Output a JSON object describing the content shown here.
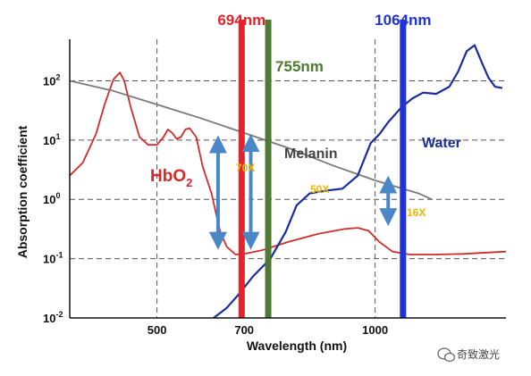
{
  "chart_data": {
    "type": "line",
    "title": "",
    "xlabel": "Wavelength (nm)",
    "ylabel": "Absorption coefficient",
    "xlim": [
      300,
      1300
    ],
    "ylim_log10": [
      -2,
      2.7
    ],
    "y_scale": "log",
    "grid": "dashed",
    "x_ticks": [
      {
        "value": 500,
        "label": "500"
      },
      {
        "value": 700,
        "label": "700"
      },
      {
        "value": 1000,
        "label": "1000"
      }
    ],
    "y_ticks": [
      {
        "value": 2,
        "base": "10",
        "exp": "2"
      },
      {
        "value": 1,
        "base": "10",
        "exp": "1"
      },
      {
        "value": 0,
        "base": "10",
        "exp": "0"
      },
      {
        "value": -1,
        "base": "10",
        "exp": "-1"
      },
      {
        "value": -2,
        "base": "10",
        "exp": "-2"
      }
    ],
    "series": [
      {
        "name": "HbO2",
        "label_main": "HbO",
        "label_sub": "2",
        "color": "#d42a2a",
        "points": [
          [
            300,
            0.4
          ],
          [
            330,
            0.62
          ],
          [
            360,
            1.1
          ],
          [
            380,
            1.6
          ],
          [
            400,
            2.02
          ],
          [
            415,
            2.14
          ],
          [
            425,
            2.0
          ],
          [
            440,
            1.55
          ],
          [
            460,
            1.05
          ],
          [
            480,
            0.92
          ],
          [
            500,
            0.92
          ],
          [
            515,
            1.05
          ],
          [
            525,
            1.18
          ],
          [
            535,
            1.12
          ],
          [
            545,
            1.02
          ],
          [
            555,
            1.05
          ],
          [
            565,
            1.18
          ],
          [
            575,
            1.2
          ],
          [
            590,
            1.05
          ],
          [
            605,
            0.55
          ],
          [
            625,
            0.1
          ],
          [
            645,
            -0.55
          ],
          [
            660,
            -0.8
          ],
          [
            680,
            -0.93
          ],
          [
            700,
            -0.92
          ],
          [
            740,
            -0.86
          ],
          [
            800,
            -0.72
          ],
          [
            870,
            -0.58
          ],
          [
            930,
            -0.5
          ],
          [
            960,
            -0.48
          ],
          [
            985,
            -0.53
          ],
          [
            1010,
            -0.72
          ],
          [
            1040,
            -0.88
          ],
          [
            1080,
            -0.93
          ],
          [
            1140,
            -0.93
          ],
          [
            1200,
            -0.92
          ],
          [
            1300,
            -0.88
          ]
        ]
      },
      {
        "name": "Melanin",
        "color": "#7a7a7a",
        "points": [
          [
            300,
            2.0
          ],
          [
            400,
            1.83
          ],
          [
            500,
            1.6
          ],
          [
            600,
            1.37
          ],
          [
            700,
            1.12
          ],
          [
            800,
            0.87
          ],
          [
            900,
            0.58
          ],
          [
            1000,
            0.32
          ],
          [
            1100,
            0.1
          ],
          [
            1130,
            0.0
          ]
        ]
      },
      {
        "name": "Water",
        "color": "#1a2d9c",
        "points": [
          [
            630,
            -2.0
          ],
          [
            660,
            -1.83
          ],
          [
            690,
            -1.58
          ],
          [
            720,
            -1.3
          ],
          [
            760,
            -1.0
          ],
          [
            795,
            -0.55
          ],
          [
            820,
            -0.1
          ],
          [
            850,
            0.1
          ],
          [
            890,
            0.15
          ],
          [
            925,
            0.18
          ],
          [
            960,
            0.4
          ],
          [
            990,
            0.95
          ],
          [
            1010,
            1.1
          ],
          [
            1030,
            1.3
          ],
          [
            1060,
            1.55
          ],
          [
            1085,
            1.7
          ],
          [
            1110,
            1.8
          ],
          [
            1140,
            1.78
          ],
          [
            1170,
            1.9
          ],
          [
            1190,
            2.15
          ],
          [
            1210,
            2.5
          ],
          [
            1228,
            2.6
          ],
          [
            1245,
            2.3
          ],
          [
            1260,
            2.05
          ],
          [
            1275,
            1.9
          ],
          [
            1290,
            1.88
          ]
        ]
      }
    ],
    "lasers": [
      {
        "wavelength": 694,
        "label": "694nm",
        "color": "#e8222b",
        "label_color": "#e8222b"
      },
      {
        "wavelength": 755,
        "label": "755nm",
        "color": "#4e7a33",
        "label_color": "#4e7a33"
      },
      {
        "wavelength": 1064,
        "label": "1064nm",
        "color": "#1f33d8",
        "label_color": "#1f33d8"
      }
    ],
    "ratio_arrows": [
      {
        "x": 640,
        "y_top": 0.9,
        "y_bottom": -0.85,
        "label": "70X"
      },
      {
        "x": 715,
        "y_top": 0.92,
        "y_bottom": -0.85,
        "label": "50X"
      },
      {
        "x": 1030,
        "y_top": 0.22,
        "y_bottom": -0.45,
        "label": "16X"
      }
    ]
  },
  "watermark": {
    "icon": "wechat-icon",
    "text": "奇致激光"
  }
}
